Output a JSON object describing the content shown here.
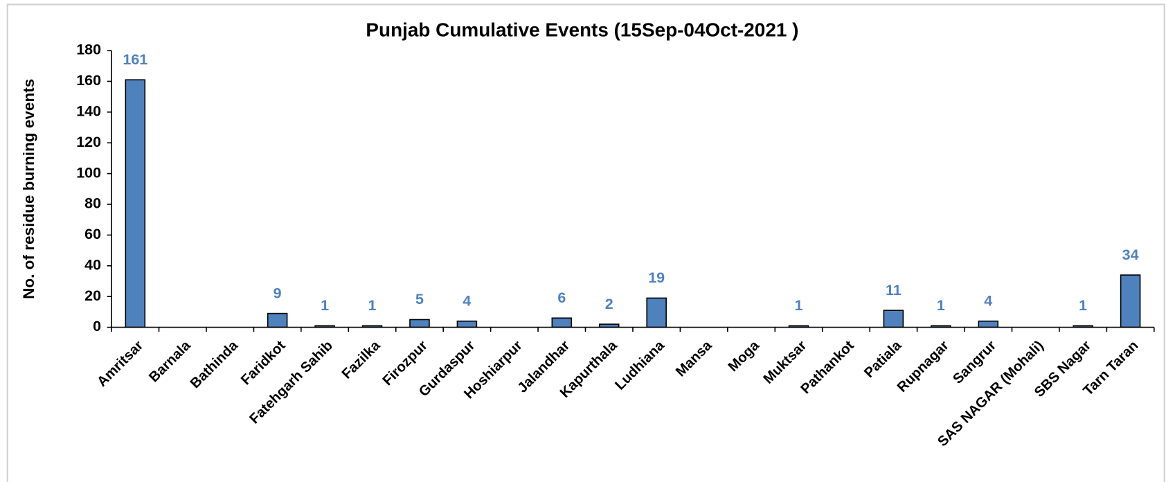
{
  "chart_data": {
    "type": "bar",
    "title": "Punjab Cumulative Events (15Sep-04Oct-2021 )",
    "y_label": "No. of residue burning events",
    "categories": [
      "Amritsar",
      "Barnala",
      "Bathinda",
      "Faridkot",
      "Fatehgarh Sahib",
      "Fazilka",
      "Firozpur",
      "Gurdaspur",
      "Hoshiarpur",
      "Jalandhar",
      "Kapurthala",
      "Ludhiana",
      "Mansa",
      "Moga",
      "Muktsar",
      "Pathankot",
      "Patiala",
      "Rupnagar",
      "Sangrur",
      "SAS NAGAR (Mohali)",
      "SBS Nagar",
      "Tarn Taran"
    ],
    "values": [
      161,
      0,
      0,
      9,
      1,
      1,
      5,
      4,
      0,
      6,
      2,
      19,
      0,
      0,
      1,
      0,
      11,
      1,
      4,
      0,
      1,
      34
    ],
    "color": "#4f81bd",
    "label_color": "#4f81bd",
    "hide_zero_labels": true,
    "ylim": [
      0,
      180
    ],
    "yticks": [
      0,
      20,
      40,
      60,
      80,
      100,
      120,
      140,
      160,
      180
    ],
    "grid": false
  }
}
